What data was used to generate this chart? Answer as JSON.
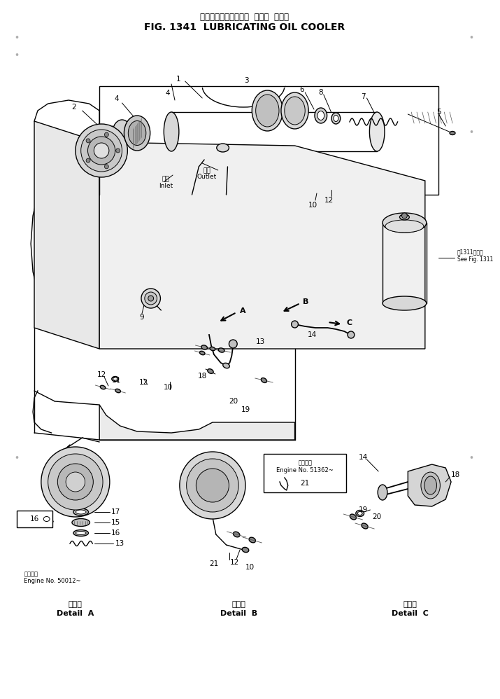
{
  "title_japanese": "ルーブリケーティング  オイル  クーラ",
  "title_english": "FIG. 1341  LUBRICATING OIL COOLER",
  "bg_color": "#ffffff",
  "line_color": "#000000",
  "fig_width": 7.15,
  "fig_height": 9.98,
  "note_see_fig": "第1311図参照\nSee Fig. 1311",
  "note_engine_a": "適用番号\nEngine No. 50012~",
  "note_engine_b": "適用番号\nEngine No. 51362~",
  "inlet_label_jp": "入口",
  "inlet_label_en": "Inlet",
  "outlet_label_jp": "出口",
  "outlet_label_en": "Outlet"
}
